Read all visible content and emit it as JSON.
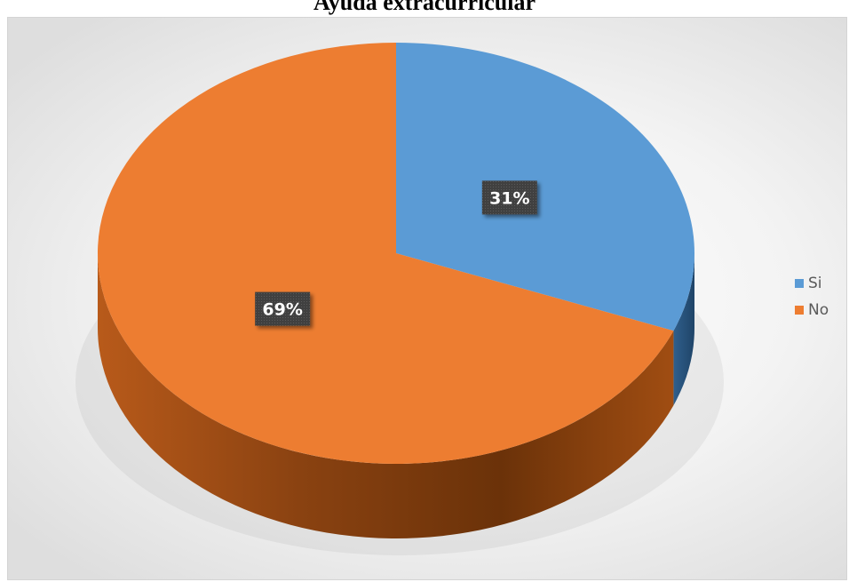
{
  "chart_data": {
    "type": "pie",
    "title": "Ayuda extracurricular",
    "categories": [
      "Si",
      "No"
    ],
    "values": [
      31,
      69
    ],
    "data_labels": [
      "31%",
      "69%"
    ],
    "colors": [
      "#5b9bd5",
      "#ed7d31"
    ],
    "style": "3d",
    "legend_position": "right"
  }
}
